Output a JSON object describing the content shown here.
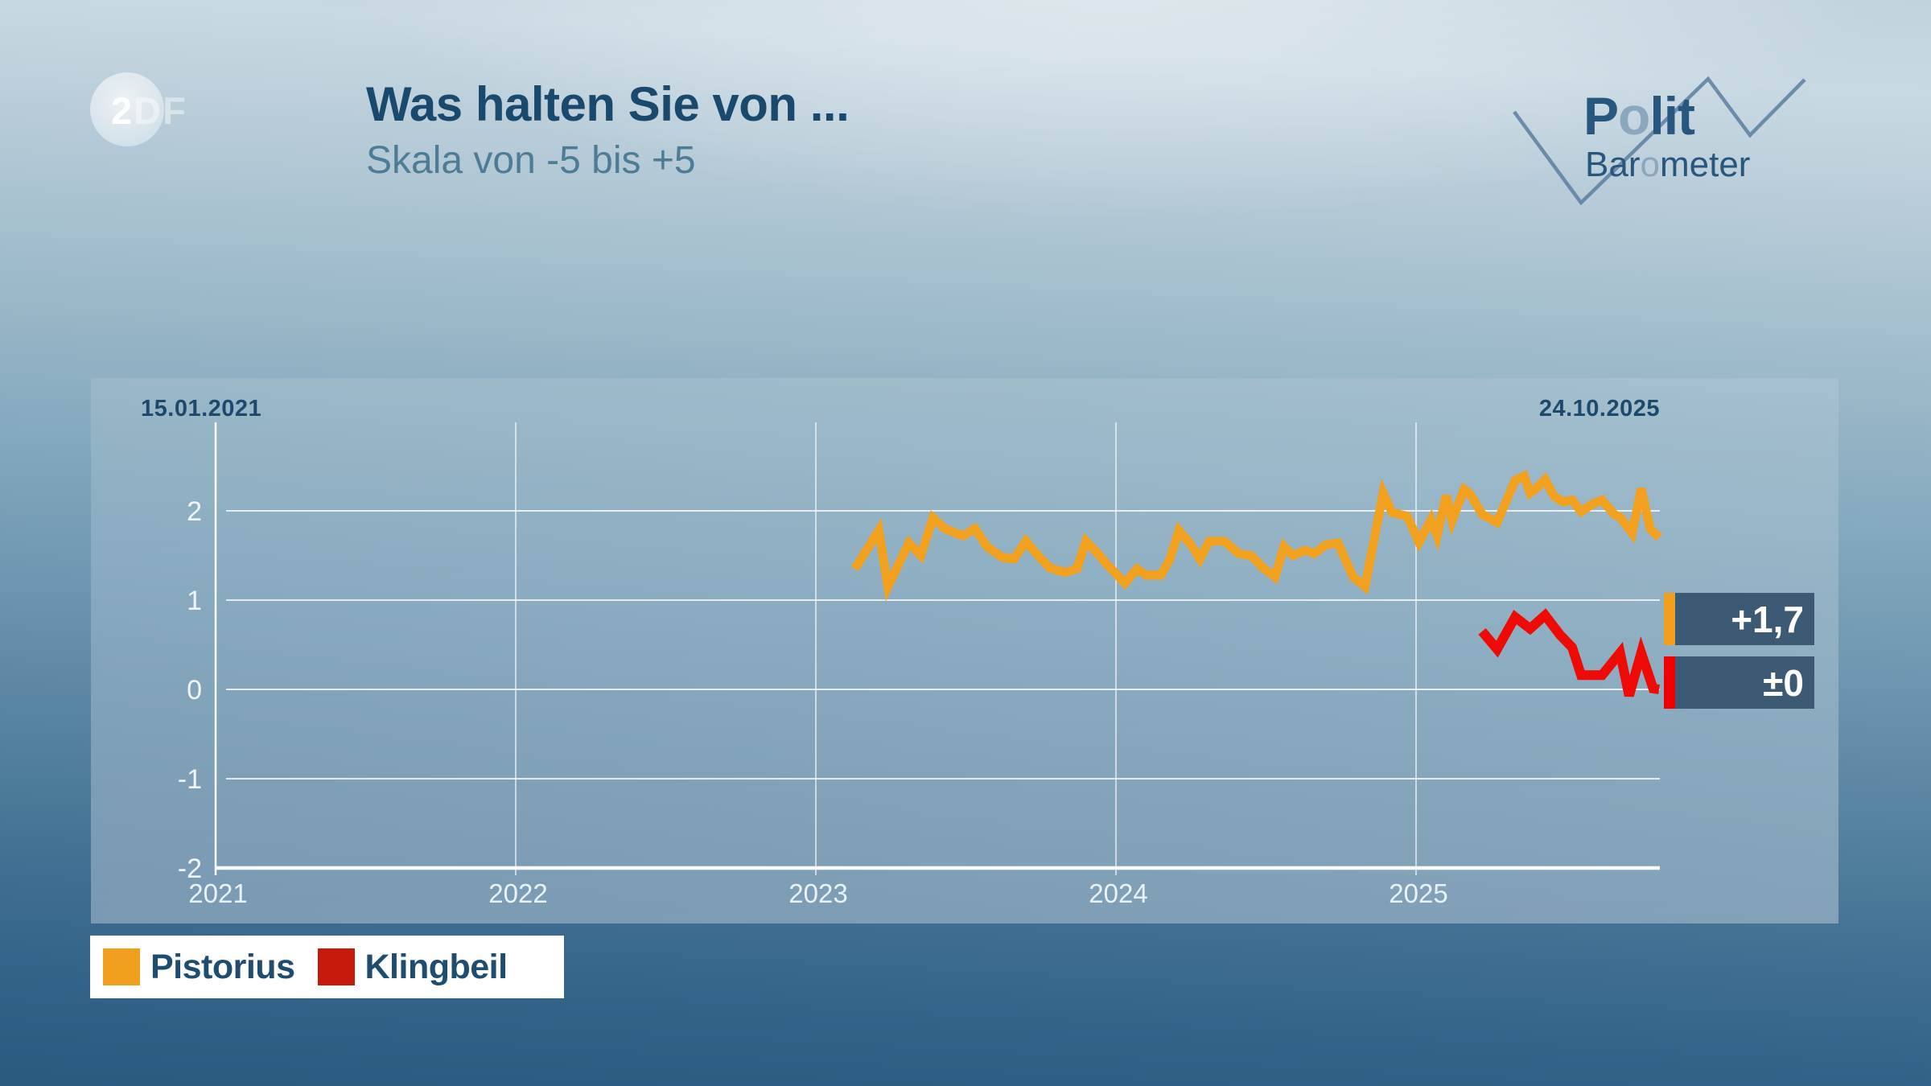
{
  "brand": {
    "zdf": {
      "bright": "2",
      "dim": "DF"
    },
    "polit": {
      "p1": "P",
      "o": "o",
      "p2": "lit"
    },
    "barometer": {
      "p1": "Bar",
      "o": "o",
      "p2": "meter"
    }
  },
  "header": {
    "title": "Was halten Sie von ...",
    "subtitle": "Skala von -5 bis +5"
  },
  "chart_data": {
    "type": "line",
    "title": "Was halten Sie von ...",
    "scale_note": "Skala von -5 bis +5",
    "period_start_label": "15.01.2021",
    "period_end_label": "24.10.2025",
    "x_ticks": [
      2021,
      2022,
      2023,
      2024,
      2025
    ],
    "y_ticks": [
      2,
      1,
      0,
      -1,
      -2
    ],
    "ylim": [
      -2.1,
      3.0
    ],
    "grid": true,
    "legend_position": "bottom-left",
    "series": [
      {
        "name": "Pistorius",
        "color": "#F2A11E",
        "stroke_width": 11,
        "points": [
          [
            2023.13,
            1.35
          ],
          [
            2023.21,
            1.78
          ],
          [
            2023.24,
            1.15
          ],
          [
            2023.31,
            1.64
          ],
          [
            2023.35,
            1.5
          ],
          [
            2023.39,
            1.92
          ],
          [
            2023.43,
            1.8
          ],
          [
            2023.49,
            1.72
          ],
          [
            2023.53,
            1.8
          ],
          [
            2023.57,
            1.6
          ],
          [
            2023.62,
            1.48
          ],
          [
            2023.66,
            1.46
          ],
          [
            2023.7,
            1.66
          ],
          [
            2023.74,
            1.5
          ],
          [
            2023.78,
            1.36
          ],
          [
            2023.83,
            1.31
          ],
          [
            2023.87,
            1.35
          ],
          [
            2023.9,
            1.66
          ],
          [
            2023.94,
            1.52
          ],
          [
            2023.97,
            1.4
          ],
          [
            2024.01,
            1.26
          ],
          [
            2024.03,
            1.19
          ],
          [
            2024.07,
            1.35
          ],
          [
            2024.1,
            1.28
          ],
          [
            2024.15,
            1.28
          ],
          [
            2024.18,
            1.46
          ],
          [
            2024.21,
            1.78
          ],
          [
            2024.25,
            1.62
          ],
          [
            2024.28,
            1.46
          ],
          [
            2024.31,
            1.66
          ],
          [
            2024.36,
            1.66
          ],
          [
            2024.41,
            1.52
          ],
          [
            2024.45,
            1.5
          ],
          [
            2024.49,
            1.36
          ],
          [
            2024.53,
            1.26
          ],
          [
            2024.56,
            1.6
          ],
          [
            2024.59,
            1.5
          ],
          [
            2024.63,
            1.56
          ],
          [
            2024.66,
            1.52
          ],
          [
            2024.7,
            1.62
          ],
          [
            2024.74,
            1.64
          ],
          [
            2024.79,
            1.26
          ],
          [
            2024.83,
            1.15
          ],
          [
            2024.89,
            2.2
          ],
          [
            2024.92,
            1.98
          ],
          [
            2024.97,
            1.94
          ],
          [
            2025.01,
            1.65
          ],
          [
            2025.05,
            1.9
          ],
          [
            2025.07,
            1.72
          ],
          [
            2025.1,
            2.17
          ],
          [
            2025.12,
            1.89
          ],
          [
            2025.16,
            2.24
          ],
          [
            2025.18,
            2.19
          ],
          [
            2025.22,
            1.96
          ],
          [
            2025.27,
            1.87
          ],
          [
            2025.33,
            2.34
          ],
          [
            2025.36,
            2.39
          ],
          [
            2025.38,
            2.2
          ],
          [
            2025.4,
            2.25
          ],
          [
            2025.43,
            2.35
          ],
          [
            2025.46,
            2.16
          ],
          [
            2025.49,
            2.1
          ],
          [
            2025.52,
            2.12
          ],
          [
            2025.55,
            1.99
          ],
          [
            2025.59,
            2.08
          ],
          [
            2025.62,
            2.12
          ],
          [
            2025.66,
            1.96
          ],
          [
            2025.68,
            1.93
          ],
          [
            2025.72,
            1.75
          ],
          [
            2025.75,
            2.25
          ],
          [
            2025.78,
            1.8
          ],
          [
            2025.81,
            1.7
          ]
        ]
      },
      {
        "name": "Klingbeil",
        "color": "#EF0A05",
        "stroke_width": 12,
        "points": [
          [
            2025.22,
            0.65
          ],
          [
            2025.27,
            0.45
          ],
          [
            2025.33,
            0.81
          ],
          [
            2025.38,
            0.68
          ],
          [
            2025.43,
            0.83
          ],
          [
            2025.48,
            0.61
          ],
          [
            2025.52,
            0.47
          ],
          [
            2025.55,
            0.16
          ],
          [
            2025.62,
            0.16
          ],
          [
            2025.68,
            0.41
          ],
          [
            2025.71,
            -0.07
          ],
          [
            2025.75,
            0.41
          ],
          [
            2025.79,
            0.01
          ],
          [
            2025.81,
            0.0
          ]
        ]
      }
    ]
  },
  "badges": [
    {
      "value": "+1,7",
      "accent": "#F0A01E"
    },
    {
      "value": "±0",
      "accent": "#F00000"
    }
  ],
  "legend": {
    "items": [
      {
        "label": "Pistorius",
        "color": "#F0A01E"
      },
      {
        "label": "Klingbeil",
        "color": "#C6190B"
      }
    ]
  }
}
